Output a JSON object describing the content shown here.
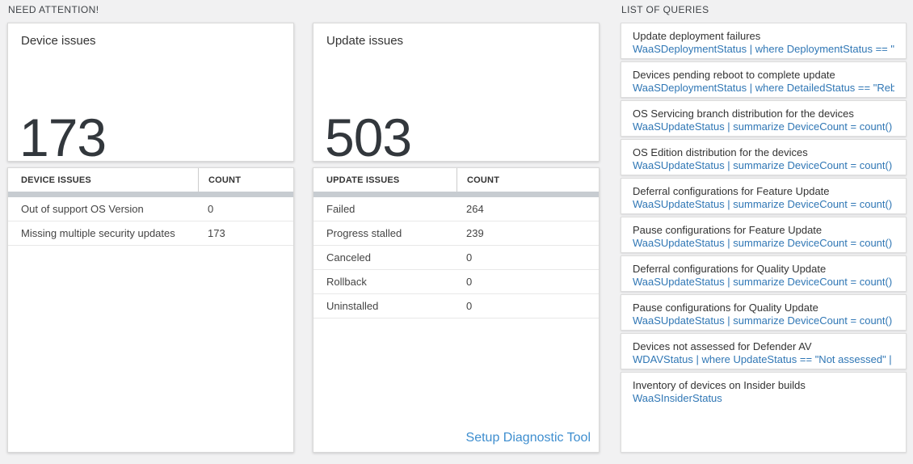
{
  "sections": {
    "need_attention_label": "NEED ATTENTION!",
    "list_of_queries_label": "LIST OF QUERIES"
  },
  "device_issues_card": {
    "title": "Device issues",
    "count": "173",
    "table": {
      "columns": [
        "DEVICE ISSUES",
        "COUNT"
      ],
      "rows": [
        {
          "label": "Out of support OS Version",
          "count": "0"
        },
        {
          "label": "Missing multiple security updates",
          "count": "173"
        }
      ]
    }
  },
  "update_issues_card": {
    "title": "Update issues",
    "count": "503",
    "table": {
      "columns": [
        "UPDATE ISSUES",
        "COUNT"
      ],
      "rows": [
        {
          "label": "Failed",
          "count": "264"
        },
        {
          "label": "Progress stalled",
          "count": "239"
        },
        {
          "label": "Canceled",
          "count": "0"
        },
        {
          "label": "Rollback",
          "count": "0"
        },
        {
          "label": "Uninstalled",
          "count": "0"
        }
      ]
    },
    "link_label": "Setup Diagnostic Tool"
  },
  "queries": [
    {
      "title": "Update deployment failures",
      "query": "WaaSDeploymentStatus | where DeploymentStatus == \"Failed\" |..."
    },
    {
      "title": "Devices pending reboot to complete update",
      "query": "WaaSDeploymentStatus | where DetailedStatus == \"Reboot pend..."
    },
    {
      "title": "OS Servicing branch distribution for the devices",
      "query": "WaaSUpdateStatus | summarize DeviceCount = count() by OSSer..."
    },
    {
      "title": "OS Edition distribution for the devices",
      "query": "WaaSUpdateStatus | summarize DeviceCount = count() by OSEdit..."
    },
    {
      "title": "Deferral configurations for Feature Update",
      "query": "WaaSUpdateStatus | summarize DeviceCount = count() by Featur..."
    },
    {
      "title": "Pause configurations for Feature Update",
      "query": "WaaSUpdateStatus | summarize DeviceCount = count() by Featur..."
    },
    {
      "title": "Deferral configurations for Quality Update",
      "query": "WaaSUpdateStatus | summarize DeviceCount = count() by Qualit..."
    },
    {
      "title": "Pause configurations for Quality Update",
      "query": "WaaSUpdateStatus | summarize DeviceCount = count() by Qualit..."
    },
    {
      "title": "Devices not assessed for Defender AV",
      "query": "WDAVStatus | where UpdateStatus == \"Not assessed\" | render ta..."
    },
    {
      "title": "Inventory of devices on Insider builds",
      "query": "WaaSInsiderStatus"
    }
  ],
  "colors": {
    "page_background": "#f1f1f2",
    "card_background": "#ffffff",
    "big_number": "#32373c",
    "query_link_blue": "#3077b5",
    "setup_link_blue": "#3e8ecf",
    "table_scrollbar": "#c7ccd1"
  }
}
